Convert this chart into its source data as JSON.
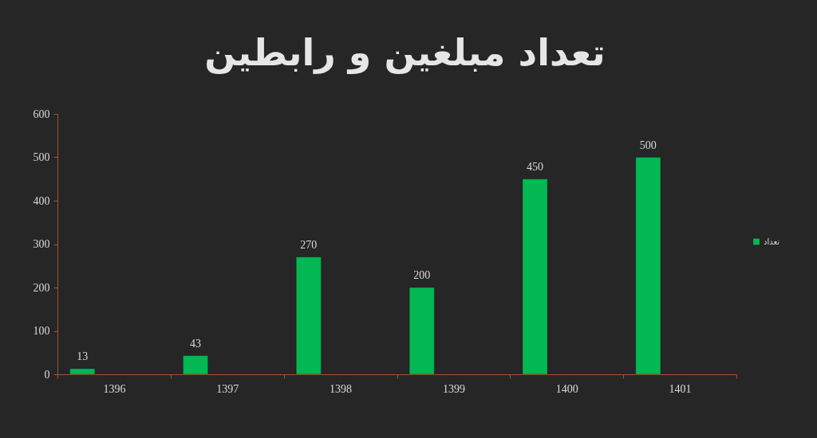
{
  "chart_data": {
    "type": "bar",
    "title": "تعداد مبلغین و رابطین",
    "categories": [
      "1396",
      "1397",
      "1398",
      "1399",
      "1400",
      "1401"
    ],
    "series": [
      {
        "name": "تعداد",
        "color": "#04b854",
        "values": [
          13,
          43,
          270,
          200,
          450,
          500
        ]
      }
    ],
    "ylim": [
      0,
      600
    ],
    "yticks": [
      0,
      100,
      200,
      300,
      400,
      500,
      600
    ],
    "data_labels": true,
    "legend": "right"
  }
}
